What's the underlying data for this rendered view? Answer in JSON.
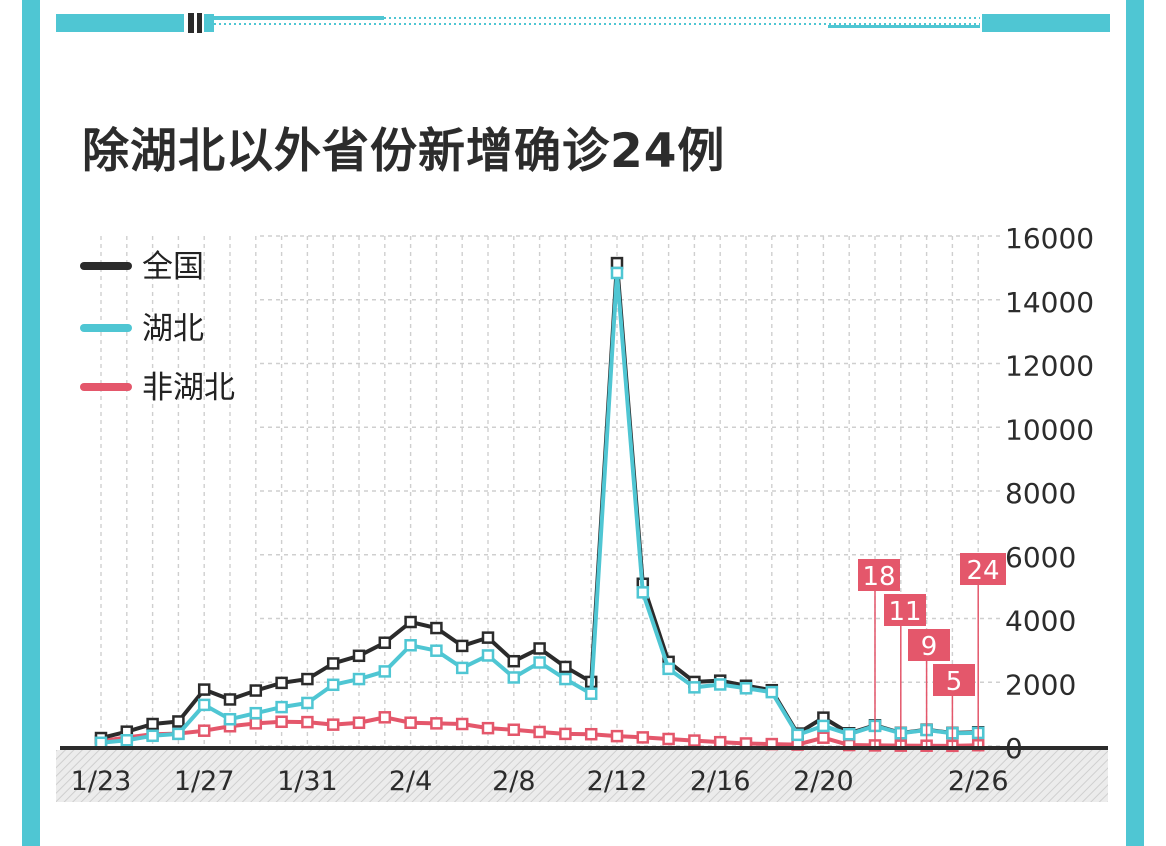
{
  "title": "除湖北以外省份新增确诊24例",
  "colors": {
    "frame": "#4fc6d3",
    "national": "#2b2b2b",
    "hubei": "#4fc6d3",
    "non_hubei": "#e4576b",
    "grid": "#c8c8c8",
    "text": "#2c2c2c"
  },
  "chart_data": {
    "type": "line",
    "title": "除湖北以外省份新增确诊24例",
    "x": [
      "1/23",
      "1/24",
      "1/25",
      "1/26",
      "1/27",
      "1/28",
      "1/29",
      "1/30",
      "1/31",
      "2/1",
      "2/2",
      "2/3",
      "2/4",
      "2/5",
      "2/6",
      "2/7",
      "2/8",
      "2/9",
      "2/10",
      "2/11",
      "2/12",
      "2/13",
      "2/14",
      "2/15",
      "2/16",
      "2/17",
      "2/18",
      "2/19",
      "2/20",
      "2/21",
      "2/22",
      "2/23",
      "2/24",
      "2/25",
      "2/26"
    ],
    "x_tick_labels": [
      "1/23",
      "1/27",
      "1/31",
      "2/4",
      "2/8",
      "2/12",
      "2/16",
      "2/20",
      "2/26"
    ],
    "y_ticks": [
      "0",
      "2000",
      "4000",
      "6000",
      "8000",
      "10000",
      "12000",
      "14000",
      "16000"
    ],
    "ylim": [
      0,
      16000
    ],
    "grid": true,
    "legend_position": "top-left",
    "series": [
      {
        "name": "全国",
        "color": "#2b2b2b",
        "values": [
          250,
          450,
          690,
          770,
          1770,
          1460,
          1740,
          1980,
          2100,
          2590,
          2830,
          3240,
          3890,
          3700,
          3140,
          3400,
          2660,
          3060,
          2480,
          2010,
          15150,
          5090,
          2640,
          2010,
          2050,
          1890,
          1750,
          390,
          890,
          400,
          650,
          410,
          510,
          410,
          430
        ]
      },
      {
        "name": "湖北",
        "color": "#4fc6d3",
        "values": [
          100,
          180,
          320,
          380,
          1290,
          840,
          1030,
          1220,
          1350,
          1920,
          2100,
          2340,
          3160,
          2990,
          2450,
          2840,
          2150,
          2620,
          2100,
          1640,
          14840,
          4820,
          2420,
          1840,
          1930,
          1810,
          1690,
          350,
          630,
          370,
          630,
          400,
          500,
          400,
          410
        ]
      },
      {
        "name": "非湖北",
        "color": "#e4576b",
        "values": [
          150,
          270,
          370,
          390,
          480,
          620,
          710,
          760,
          750,
          670,
          730,
          900,
          730,
          710,
          690,
          560,
          510,
          440,
          380,
          370,
          310,
          270,
          220,
          170,
          120,
          80,
          60,
          45,
          260,
          30,
          18,
          11,
          9,
          5,
          24
        ]
      }
    ],
    "annotations": [
      {
        "date": "2/22",
        "label": "18"
      },
      {
        "date": "2/23",
        "label": "11"
      },
      {
        "date": "2/24",
        "label": "9"
      },
      {
        "date": "2/25",
        "label": "5"
      },
      {
        "date": "2/26",
        "label": "24"
      }
    ]
  }
}
